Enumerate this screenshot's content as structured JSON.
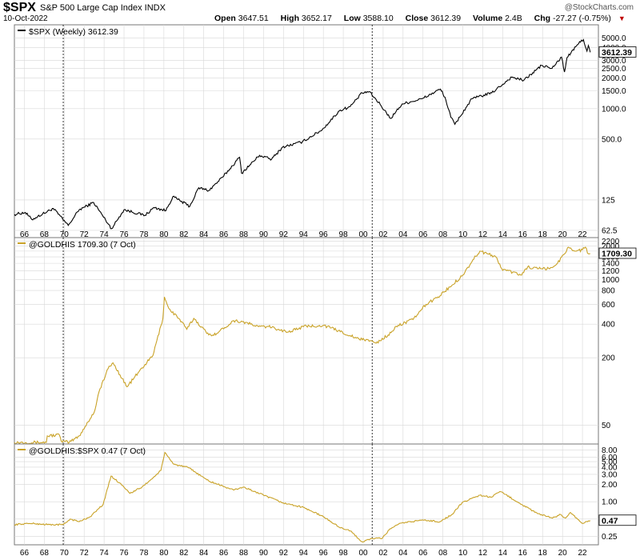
{
  "header": {
    "symbol": "$SPX",
    "name": "S&P 500 Large Cap Index  INDX",
    "date": "10-Oct-2022",
    "logo": "@StockCharts.com",
    "quote": {
      "open_label": "Open",
      "open": "3647.51",
      "high_label": "High",
      "high": "3652.17",
      "low_label": "Low",
      "low": "3588.10",
      "close_label": "Close",
      "close": "3612.39",
      "volume_label": "Volume",
      "volume": "2.4B",
      "chg_label": "Chg",
      "chg": "-27.27 (-0.75%)"
    }
  },
  "colors": {
    "spx": "#000000",
    "gold": "#c9a227",
    "grid": "#d8d8d8",
    "frame": "#777777"
  },
  "chart_data": [
    {
      "type": "line",
      "title": "$SPX (Weekly) 3612.39",
      "last_label": "3612.39",
      "y_scale": "log",
      "ylim": [
        55,
        6500
      ],
      "y_ticks": [
        {
          "v": 62.5,
          "label": "62.5"
        },
        {
          "v": 125,
          "label": "125"
        },
        {
          "v": 500,
          "label": "500.0"
        },
        {
          "v": 1000,
          "label": "1000.0"
        },
        {
          "v": 1500,
          "label": "1500.0"
        },
        {
          "v": 2000,
          "label": "2000.0"
        },
        {
          "v": 2500,
          "label": "2500.0"
        },
        {
          "v": 3000,
          "label": "3000.0"
        },
        {
          "v": 4000,
          "label": "4000.0"
        },
        {
          "v": 5000,
          "label": "5000.0"
        }
      ],
      "x": [
        1965.0,
        1966.1,
        1966.75,
        1968.9,
        1970.4,
        1971.5,
        1972.95,
        1974.75,
        1976.0,
        1978.1,
        1979.0,
        1980.2,
        1980.9,
        1982.6,
        1983.5,
        1984.5,
        1985.9,
        1987.6,
        1987.8,
        1989.6,
        1990.8,
        1991.9,
        1993.9,
        1995.9,
        1997.6,
        1998.7,
        1999.9,
        2000.6,
        2001.7,
        2002.75,
        2003.9,
        2005.9,
        2007.75,
        2008.2,
        2008.8,
        2009.2,
        2010.9,
        2012.9,
        2014.9,
        2016.1,
        2017.9,
        2018.95,
        2019.9,
        2020.2,
        2020.45,
        2021.9,
        2022.1,
        2022.45,
        2022.6,
        2022.78
      ],
      "values": [
        90,
        94,
        80,
        103,
        70,
        100,
        118,
        65,
        100,
        88,
        105,
        98,
        135,
        108,
        165,
        155,
        210,
        330,
        230,
        345,
        315,
        415,
        470,
        620,
        950,
        1050,
        1430,
        1470,
        1100,
        800,
        1110,
        1250,
        1560,
        1300,
        820,
        700,
        1250,
        1430,
        2050,
        1900,
        2670,
        2500,
        3230,
        2300,
        3200,
        4750,
        4800,
        3700,
        4200,
        3600
      ]
    },
    {
      "type": "line",
      "title": "@GOLDHIS 1709.30 (7 Oct)",
      "last_label": "1709.30",
      "y_scale": "log",
      "ylim": [
        35,
        2300
      ],
      "y_ticks": [
        {
          "v": 50,
          "label": "50"
        },
        {
          "v": 200,
          "label": "200"
        },
        {
          "v": 400,
          "label": "400"
        },
        {
          "v": 600,
          "label": "600"
        },
        {
          "v": 800,
          "label": "800"
        },
        {
          "v": 1000,
          "label": "1000"
        },
        {
          "v": 1200,
          "label": "1200"
        },
        {
          "v": 1400,
          "label": "1400"
        },
        {
          "v": 1600,
          "label": "1600"
        },
        {
          "v": 1800,
          "label": "1800"
        },
        {
          "v": 2000,
          "label": "2000"
        },
        {
          "v": 2200,
          "label": "2200"
        }
      ],
      "x": [
        1965.0,
        1968.2,
        1968.3,
        1969.5,
        1969.7,
        1970.5,
        1971.5,
        1973.0,
        1973.5,
        1974.4,
        1974.9,
        1976.3,
        1977.5,
        1978.9,
        1979.9,
        1980.05,
        1980.5,
        1981.5,
        1982.3,
        1983.0,
        1984.5,
        1985.3,
        1987.0,
        1987.9,
        1989.5,
        1990.5,
        1991.5,
        1992.5,
        1994.0,
        1996.0,
        1997.5,
        1999.3,
        1999.9,
        2000.5,
        2001.3,
        2002.5,
        2003.5,
        2005.0,
        2006.3,
        2007.5,
        2008.7,
        2010.0,
        2011.0,
        2011.7,
        2012.5,
        2013.3,
        2013.9,
        2015.9,
        2016.5,
        2017.5,
        2018.7,
        2019.5,
        2020.6,
        2021.3,
        2022.0,
        2022.3,
        2022.6,
        2022.78
      ],
      "values": [
        35,
        35,
        40,
        41,
        36,
        35,
        40,
        65,
        100,
        160,
        180,
        110,
        150,
        210,
        450,
        700,
        550,
        450,
        360,
        450,
        320,
        330,
        430,
        420,
        380,
        380,
        360,
        340,
        380,
        390,
        350,
        300,
        290,
        290,
        270,
        320,
        390,
        440,
        600,
        700,
        860,
        1100,
        1500,
        1800,
        1700,
        1600,
        1250,
        1100,
        1300,
        1250,
        1250,
        1400,
        1950,
        1800,
        1850,
        1950,
        1700,
        1709
      ]
    },
    {
      "type": "line",
      "title": "@GOLDHIS:$SPX 0.47 (7 Oct)",
      "last_label": "0.47",
      "y_scale": "log",
      "ylim": [
        0.19,
        9.5
      ],
      "y_ticks": [
        {
          "v": 0.25,
          "label": "0.25"
        },
        {
          "v": 0.5,
          "label": "0.50"
        },
        {
          "v": 1,
          "label": "1.00"
        },
        {
          "v": 2,
          "label": "2.00"
        },
        {
          "v": 3,
          "label": "3.00"
        },
        {
          "v": 4,
          "label": "4.00"
        },
        {
          "v": 5,
          "label": "5.00"
        },
        {
          "v": 6,
          "label": "6.00"
        },
        {
          "v": 8,
          "label": "8.00"
        }
      ],
      "x": [
        1965.0,
        1966.5,
        1968.5,
        1969.9,
        1970.6,
        1971.5,
        1972.6,
        1973.9,
        1974.7,
        1975.9,
        1976.6,
        1977.8,
        1978.9,
        1979.7,
        1980.1,
        1981.0,
        1982.5,
        1984.5,
        1987.0,
        1988.0,
        1990.0,
        1992.0,
        1994.0,
        1996.0,
        1997.5,
        1998.7,
        1999.9,
        2000.9,
        2001.9,
        2002.7,
        2003.9,
        2006.0,
        2007.7,
        2008.9,
        2009.9,
        2010.9,
        2011.7,
        2012.8,
        2013.8,
        2015.9,
        2017.5,
        2019.0,
        2019.8,
        2020.3,
        2020.8,
        2021.5,
        2022.0,
        2022.5,
        2022.78
      ],
      "values": [
        0.4,
        0.42,
        0.4,
        0.4,
        0.5,
        0.45,
        0.55,
        0.9,
        2.8,
        1.9,
        1.4,
        1.8,
        2.6,
        3.5,
        7.2,
        4.5,
        3.9,
        2.3,
        1.6,
        1.8,
        1.3,
        0.95,
        0.8,
        0.55,
        0.37,
        0.31,
        0.2,
        0.23,
        0.23,
        0.34,
        0.43,
        0.48,
        0.45,
        0.6,
        0.95,
        1.15,
        1.3,
        1.2,
        1.5,
        0.9,
        0.62,
        0.52,
        0.6,
        0.52,
        0.65,
        0.5,
        0.42,
        0.45,
        0.47
      ]
    }
  ],
  "x_axis": {
    "range": [
      1965,
      2023.6
    ],
    "tick_labels": [
      "66",
      "68",
      "70",
      "72",
      "74",
      "76",
      "78",
      "80",
      "82",
      "84",
      "86",
      "88",
      "90",
      "92",
      "94",
      "96",
      "98",
      "00",
      "02",
      "04",
      "06",
      "08",
      "10",
      "12",
      "14",
      "16",
      "18",
      "20",
      "22"
    ],
    "tick_years": [
      1966,
      1968,
      1970,
      1972,
      1974,
      1976,
      1978,
      1980,
      1982,
      1984,
      1986,
      1988,
      1990,
      1992,
      1994,
      1996,
      1998,
      2000,
      2002,
      2004,
      2006,
      2008,
      2010,
      2012,
      2014,
      2016,
      2018,
      2020,
      2022
    ],
    "markers": [
      1969.9,
      2000.9
    ]
  }
}
